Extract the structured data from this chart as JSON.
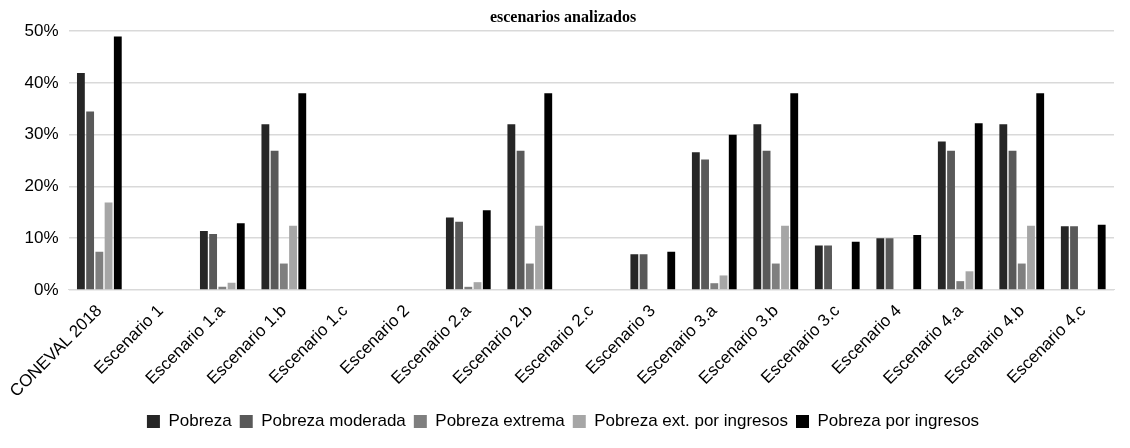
{
  "chart_data": {
    "type": "bar",
    "title": "escenarios analizados",
    "categories": [
      "CONEVAL 2018",
      "Escenario 1",
      "Escenario 1.a",
      "Escenario 1.b",
      "Escenario 1.c",
      "Escenario 2",
      "Escenario 2.a",
      "Escenario 2.b",
      "Escenario 2.c",
      "Escenario 3",
      "Escenario 3.a",
      "Escenario 3.b",
      "Escenario 3.c",
      "Escenario 4",
      "Escenario 4.a",
      "Escenario 4.b",
      "Escenario 4.c"
    ],
    "series": [
      {
        "name": "Pobreza",
        "color": "#262626",
        "values": [
          41.9,
          null,
          11.4,
          32,
          null,
          null,
          14,
          32,
          null,
          6.9,
          26.6,
          32,
          8.6,
          10,
          28.7,
          32,
          12.3
        ]
      },
      {
        "name": "Pobreza moderada",
        "color": "#595959",
        "values": [
          34.5,
          null,
          10.8,
          26.9,
          null,
          null,
          13.2,
          26.9,
          null,
          6.9,
          25.2,
          26.9,
          8.6,
          10,
          26.9,
          26.9,
          12.3
        ]
      },
      {
        "name": "Pobreza extrema",
        "color": "#7f7f7f",
        "values": [
          7.4,
          null,
          0.6,
          5.1,
          null,
          null,
          0.6,
          5.1,
          null,
          null,
          1.3,
          5.1,
          null,
          null,
          1.7,
          5.1,
          null
        ]
      },
      {
        "name": "Pobreza ext. por ingresos",
        "color": "#a6a6a6",
        "values": [
          16.9,
          null,
          1.4,
          12.4,
          null,
          null,
          1.5,
          12.4,
          null,
          null,
          2.8,
          12.4,
          null,
          null,
          3.6,
          12.4,
          null
        ]
      },
      {
        "name": "Pobreza por ingresos",
        "color": "#000000",
        "values": [
          49,
          null,
          12.9,
          38,
          null,
          null,
          15.4,
          38,
          null,
          7.4,
          30,
          38,
          9.3,
          10.6,
          32.2,
          38,
          12.6
        ]
      }
    ],
    "ylim": [
      0,
      50
    ],
    "yticks": [
      {
        "value": 0,
        "label": "0%"
      },
      {
        "value": 10,
        "label": "10%"
      },
      {
        "value": 20,
        "label": "20%"
      },
      {
        "value": 30,
        "label": "30%"
      },
      {
        "value": 40,
        "label": "40%"
      },
      {
        "value": 50,
        "label": "50%"
      }
    ],
    "grid": "y",
    "legend": "bottom"
  }
}
